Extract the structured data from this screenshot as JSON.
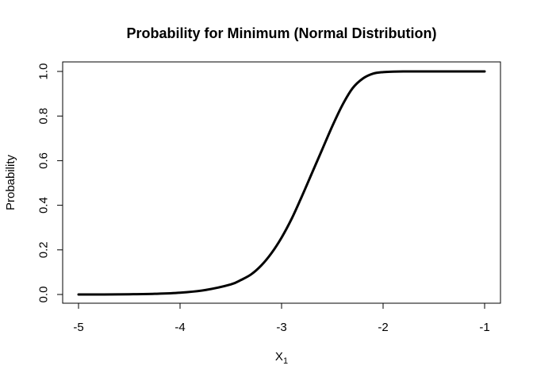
{
  "chart_data": {
    "type": "line",
    "title": "Probability for Minimum (Normal Distribution)",
    "xlabel_main": "X",
    "xlabel_sub": "1",
    "ylabel": "Probability",
    "xlim": [
      -5,
      -1
    ],
    "ylim": [
      0,
      1
    ],
    "x_ticks": [
      -5,
      -4,
      -3,
      -2,
      -1
    ],
    "x_tick_labels": [
      "-5",
      "-4",
      "-3",
      "-2",
      "-1"
    ],
    "y_ticks": [
      0,
      0.2,
      0.4,
      0.6,
      0.8,
      1.0
    ],
    "y_tick_labels": [
      "0.0",
      "0.2",
      "0.4",
      "0.6",
      "0.8",
      "1.0"
    ],
    "grid": false,
    "series": [
      {
        "color": "#000000",
        "x": [
          -5.0,
          -4.75,
          -4.5,
          -4.25,
          -4.0,
          -3.75,
          -3.5,
          -3.4,
          -3.3,
          -3.2,
          -3.1,
          -3.0,
          -2.9,
          -2.8,
          -2.7,
          -2.6,
          -2.5,
          -2.4,
          -2.3,
          -2.2,
          -2.1,
          -2.0,
          -1.9,
          -1.8,
          -1.7,
          -1.5,
          -1.25,
          -1.0
        ],
        "y": [
          0.0,
          0.0,
          0.001,
          0.003,
          0.008,
          0.02,
          0.045,
          0.065,
          0.09,
          0.13,
          0.185,
          0.255,
          0.34,
          0.44,
          0.545,
          0.65,
          0.755,
          0.85,
          0.925,
          0.968,
          0.99,
          0.997,
          0.999,
          1.0,
          1.0,
          1.0,
          1.0,
          1.0
        ]
      }
    ]
  }
}
